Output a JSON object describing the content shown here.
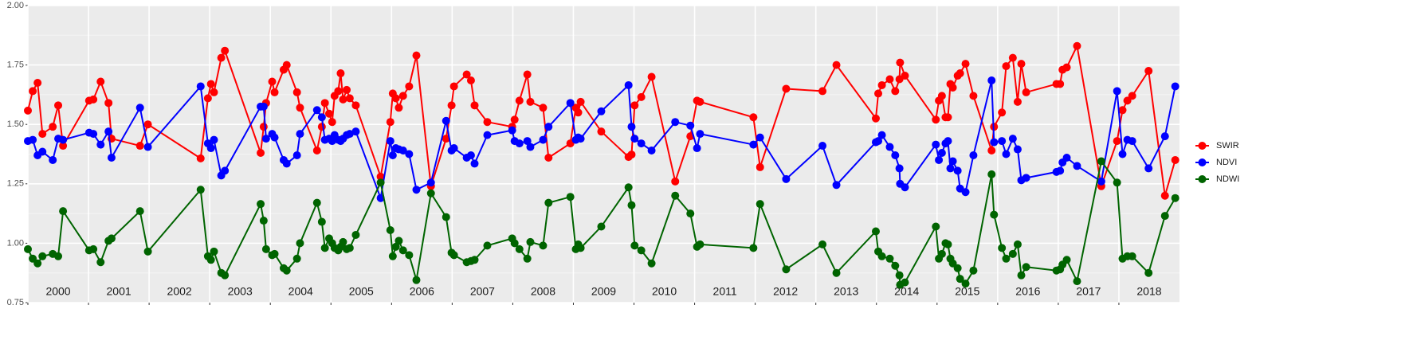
{
  "chart_data": {
    "type": "line",
    "x": [
      2000.0,
      2000.08,
      2000.16,
      2000.24,
      2000.41,
      2000.5,
      2000.58,
      2001.01,
      2001.08,
      2001.2,
      2001.33,
      2001.38,
      2001.85,
      2001.98,
      2002.85,
      2002.97,
      2003.02,
      2003.07,
      2003.19,
      2003.25,
      2003.84,
      2003.89,
      2003.93,
      2004.03,
      2004.07,
      2004.22,
      2004.27,
      2004.44,
      2004.49,
      2004.77,
      2004.85,
      2004.9,
      2004.97,
      2005.02,
      2005.06,
      2005.12,
      2005.16,
      2005.2,
      2005.26,
      2005.31,
      2005.41,
      2005.82,
      2005.98,
      2006.02,
      2006.07,
      2006.12,
      2006.19,
      2006.29,
      2006.41,
      2006.65,
      2006.9,
      2006.99,
      2007.03,
      2007.24,
      2007.31,
      2007.37,
      2007.58,
      2007.99,
      2008.03,
      2008.11,
      2008.24,
      2008.29,
      2008.5,
      2008.59,
      2008.95,
      2009.04,
      2009.08,
      2009.12,
      2009.46,
      2009.91,
      2009.96,
      2010.01,
      2010.12,
      2010.29,
      2010.68,
      2010.93,
      2011.04,
      2011.09,
      2011.97,
      2012.08,
      2012.51,
      2013.11,
      2013.34,
      2013.99,
      2014.03,
      2014.09,
      2014.22,
      2014.31,
      2014.38,
      2014.39,
      2014.47,
      2014.98,
      2015.03,
      2015.08,
      2015.14,
      2015.18,
      2015.22,
      2015.26,
      2015.34,
      2015.38,
      2015.47,
      2015.6,
      2015.9,
      2015.94,
      2016.07,
      2016.14,
      2016.25,
      2016.33,
      2016.39,
      2016.47,
      2016.97,
      2017.03,
      2017.07,
      2017.14,
      2017.31,
      2017.71,
      2017.97,
      2018.06,
      2018.14,
      2018.22,
      2018.49,
      2018.76,
      2018.93
    ],
    "series": [
      {
        "name": "SWIR",
        "color": "#ff0000",
        "values": [
          1.558,
          1.64,
          1.675,
          1.46,
          1.49,
          1.58,
          1.41,
          1.6,
          1.605,
          1.68,
          1.59,
          1.44,
          1.41,
          1.5,
          1.357,
          1.61,
          1.67,
          1.635,
          1.78,
          1.81,
          1.38,
          1.49,
          1.59,
          1.68,
          1.635,
          1.73,
          1.75,
          1.635,
          1.57,
          1.39,
          1.49,
          1.59,
          1.545,
          1.51,
          1.62,
          1.64,
          1.715,
          1.605,
          1.645,
          1.61,
          1.58,
          1.28,
          1.51,
          1.63,
          1.61,
          1.57,
          1.62,
          1.66,
          1.79,
          1.24,
          1.44,
          1.58,
          1.66,
          1.71,
          1.685,
          1.58,
          1.51,
          1.49,
          1.52,
          1.6,
          1.71,
          1.595,
          1.57,
          1.36,
          1.42,
          1.57,
          1.55,
          1.595,
          1.47,
          1.363,
          1.373,
          1.58,
          1.615,
          1.7,
          1.26,
          1.45,
          1.6,
          1.595,
          1.53,
          1.32,
          1.65,
          1.64,
          1.75,
          1.525,
          1.63,
          1.665,
          1.69,
          1.64,
          1.69,
          1.76,
          1.705,
          1.52,
          1.6,
          1.62,
          1.53,
          1.53,
          1.67,
          1.655,
          1.705,
          1.715,
          1.755,
          1.62,
          1.39,
          1.49,
          1.55,
          1.745,
          1.78,
          1.595,
          1.755,
          1.635,
          1.67,
          1.67,
          1.73,
          1.74,
          1.83,
          1.24,
          1.43,
          1.56,
          1.6,
          1.62,
          1.725,
          1.2,
          1.35
        ]
      },
      {
        "name": "NDVI",
        "color": "#0000ff",
        "values": [
          1.43,
          1.435,
          1.37,
          1.385,
          1.35,
          1.44,
          1.435,
          1.465,
          1.46,
          1.415,
          1.47,
          1.36,
          1.57,
          1.405,
          1.66,
          1.42,
          1.4,
          1.435,
          1.285,
          1.305,
          1.575,
          1.575,
          1.44,
          1.46,
          1.445,
          1.35,
          1.335,
          1.37,
          1.46,
          1.56,
          1.53,
          1.435,
          1.44,
          1.43,
          1.455,
          1.435,
          1.43,
          1.44,
          1.455,
          1.46,
          1.47,
          1.19,
          1.43,
          1.37,
          1.4,
          1.395,
          1.39,
          1.375,
          1.225,
          1.255,
          1.515,
          1.39,
          1.4,
          1.36,
          1.37,
          1.335,
          1.455,
          1.475,
          1.43,
          1.42,
          1.43,
          1.405,
          1.435,
          1.49,
          1.59,
          1.435,
          1.445,
          1.44,
          1.555,
          1.665,
          1.49,
          1.44,
          1.42,
          1.39,
          1.51,
          1.495,
          1.4,
          1.46,
          1.415,
          1.445,
          1.27,
          1.41,
          1.245,
          1.425,
          1.43,
          1.455,
          1.405,
          1.37,
          1.315,
          1.25,
          1.235,
          1.415,
          1.35,
          1.38,
          1.42,
          1.43,
          1.315,
          1.345,
          1.305,
          1.23,
          1.215,
          1.37,
          1.685,
          1.425,
          1.43,
          1.375,
          1.44,
          1.395,
          1.265,
          1.275,
          1.3,
          1.305,
          1.34,
          1.36,
          1.325,
          1.26,
          1.64,
          1.375,
          1.435,
          1.43,
          1.315,
          1.45,
          1.66
        ]
      },
      {
        "name": "NDWI",
        "color": "#006400",
        "values": [
          0.975,
          0.935,
          0.915,
          0.945,
          0.955,
          0.945,
          1.135,
          0.97,
          0.975,
          0.92,
          1.01,
          1.02,
          1.135,
          0.965,
          1.225,
          0.945,
          0.93,
          0.965,
          0.875,
          0.865,
          1.165,
          1.095,
          0.975,
          0.95,
          0.955,
          0.895,
          0.885,
          0.935,
          1.0,
          1.17,
          1.09,
          0.98,
          1.02,
          1.0,
          0.98,
          0.97,
          0.985,
          1.005,
          0.975,
          0.98,
          1.035,
          1.255,
          1.055,
          0.945,
          0.985,
          1.01,
          0.97,
          0.95,
          0.845,
          1.21,
          1.11,
          0.96,
          0.95,
          0.92,
          0.925,
          0.93,
          0.99,
          1.02,
          1.0,
          0.975,
          0.935,
          1.005,
          0.99,
          1.17,
          1.195,
          0.975,
          0.995,
          0.98,
          1.07,
          1.235,
          1.16,
          0.99,
          0.97,
          0.915,
          1.2,
          1.125,
          0.985,
          0.995,
          0.98,
          1.165,
          0.89,
          0.995,
          0.875,
          1.05,
          0.965,
          0.945,
          0.935,
          0.905,
          0.865,
          0.825,
          0.835,
          1.07,
          0.935,
          0.955,
          1.0,
          0.995,
          0.935,
          0.915,
          0.895,
          0.85,
          0.83,
          0.885,
          1.29,
          1.12,
          0.98,
          0.935,
          0.955,
          0.995,
          0.865,
          0.9,
          0.885,
          0.89,
          0.91,
          0.93,
          0.84,
          1.345,
          1.255,
          0.935,
          0.945,
          0.945,
          0.875,
          1.115,
          1.19
        ]
      }
    ],
    "xlim": [
      2000,
      2019
    ],
    "xticks": [
      2000,
      2001,
      2002,
      2003,
      2004,
      2005,
      2006,
      2007,
      2008,
      2009,
      2010,
      2011,
      2012,
      2013,
      2014,
      2015,
      2016,
      2017,
      2018
    ],
    "ylim": [
      0.75,
      2
    ],
    "yticks": [
      0.75,
      {
        "value": 1,
        "label": "1.00"
      },
      1.25,
      {
        "value": 1.5,
        "label": "1.50"
      },
      1.75,
      {
        "value": 2,
        "label": "2.00"
      }
    ],
    "grid": true,
    "legend": "right"
  }
}
